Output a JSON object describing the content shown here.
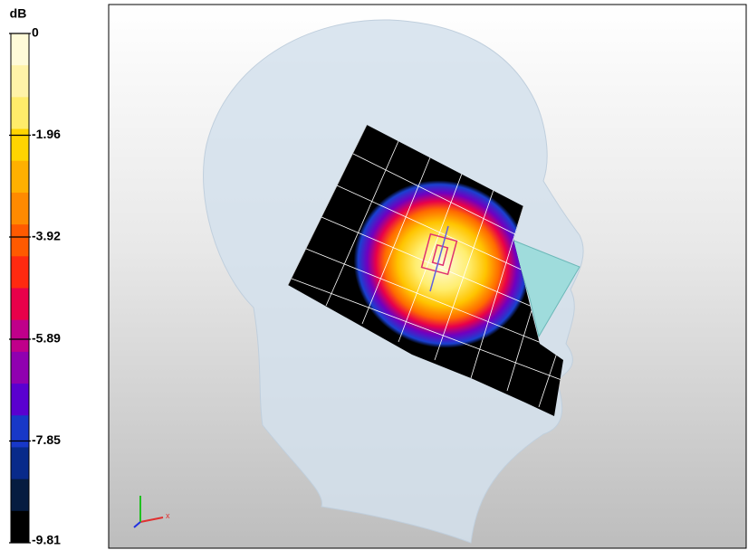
{
  "colorbar": {
    "unit": "dB",
    "lim": [
      -9.81,
      0
    ],
    "ticks": [
      0,
      -1.96,
      -3.92,
      -5.89,
      -7.85,
      -9.81
    ],
    "colors": [
      "#fffbd8",
      "#fff3a8",
      "#ffec6a",
      "#ffd400",
      "#ffb000",
      "#ff8a00",
      "#ff5a00",
      "#ff2a10",
      "#e8004a",
      "#c0008a",
      "#9000b0",
      "#5a00d0",
      "#1838c8",
      "#082a8a",
      "#061c40",
      "#000000"
    ]
  }
}
